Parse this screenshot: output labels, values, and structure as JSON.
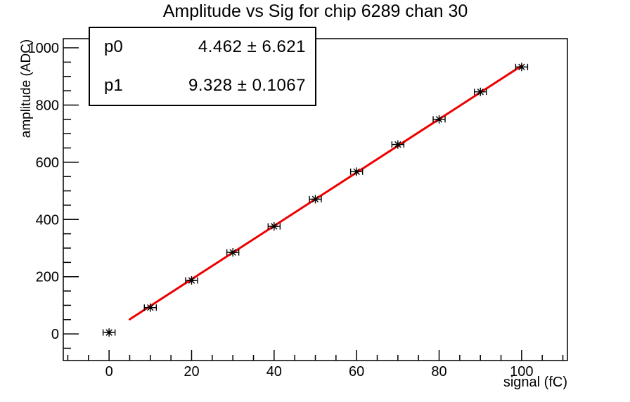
{
  "chart_data": {
    "type": "scatter",
    "title": "Amplitude vs Sig for chip 6289 chan 30",
    "xlabel": "signal (fC)",
    "ylabel": "amplitude (ADC)",
    "x": [
      0,
      10,
      20,
      30,
      40,
      50,
      60,
      70,
      80,
      90,
      100
    ],
    "y": [
      5,
      92,
      187,
      285,
      376,
      471,
      567,
      662,
      750,
      846,
      933
    ],
    "x_err": 1.45,
    "fit": {
      "p0": 4.462,
      "p1": 9.328,
      "x_start": 5,
      "x_end": 100,
      "color": "#ee0000"
    },
    "xlim": [
      -11.1,
      111.1
    ],
    "ylim": [
      -93,
      1032
    ],
    "x_major_ticks": [
      0,
      20,
      40,
      60,
      80,
      100
    ],
    "x_minor_step": 5,
    "y_major_ticks": [
      0,
      200,
      400,
      600,
      800,
      1000
    ],
    "y_minor_step": 50,
    "grid": false,
    "marker": "asterisk-8-point",
    "marker_color": "#000000",
    "axis_color": "#000000",
    "stats": {
      "rows": [
        {
          "name": "p0",
          "value": "4.462 ± 6.621"
        },
        {
          "name": "p1",
          "value": "9.328 ± 0.1067"
        }
      ]
    }
  }
}
